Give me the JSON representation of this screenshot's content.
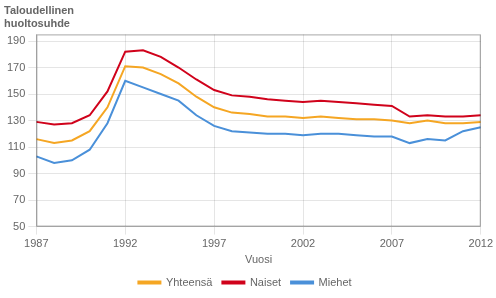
{
  "chart_data": {
    "type": "line",
    "title": "Taloudellinen\nhuoltosuhde",
    "xlabel": "Vuosi",
    "x": [
      1987,
      1988,
      1989,
      1990,
      1991,
      1992,
      1993,
      1994,
      1995,
      1996,
      1997,
      1998,
      1999,
      2000,
      2001,
      2002,
      2003,
      2004,
      2005,
      2006,
      2007,
      2008,
      2009,
      2010,
      2011,
      2012
    ],
    "series": [
      {
        "name": "Yhteensä",
        "color": "#F5A623",
        "values": [
          116,
          113,
          115,
          122,
          140,
          171,
          170,
          165,
          158,
          148,
          140,
          136,
          135,
          133,
          133,
          132,
          133,
          132,
          131,
          131,
          130,
          128,
          130,
          128,
          128,
          129
        ]
      },
      {
        "name": "Naiset",
        "color": "#D0021B",
        "values": [
          129,
          127,
          128,
          134,
          152,
          182,
          183,
          178,
          170,
          161,
          153,
          149,
          148,
          146,
          145,
          144,
          145,
          144,
          143,
          142,
          141,
          133,
          134,
          133,
          133,
          134
        ]
      },
      {
        "name": "Miehet",
        "color": "#4A90D9",
        "values": [
          103,
          98,
          100,
          108,
          128,
          160,
          155,
          150,
          145,
          134,
          126,
          122,
          121,
          120,
          120,
          119,
          120,
          120,
          119,
          118,
          118,
          113,
          116,
          115,
          122,
          125
        ]
      }
    ],
    "xlim": [
      1987,
      2012
    ],
    "xticks": [
      1987,
      1992,
      1997,
      2002,
      2007,
      2012
    ],
    "ylim": [
      50,
      195
    ],
    "yticks": [
      50,
      70,
      90,
      110,
      130,
      150,
      170,
      190
    ],
    "grid": true,
    "legend": "bottom"
  }
}
